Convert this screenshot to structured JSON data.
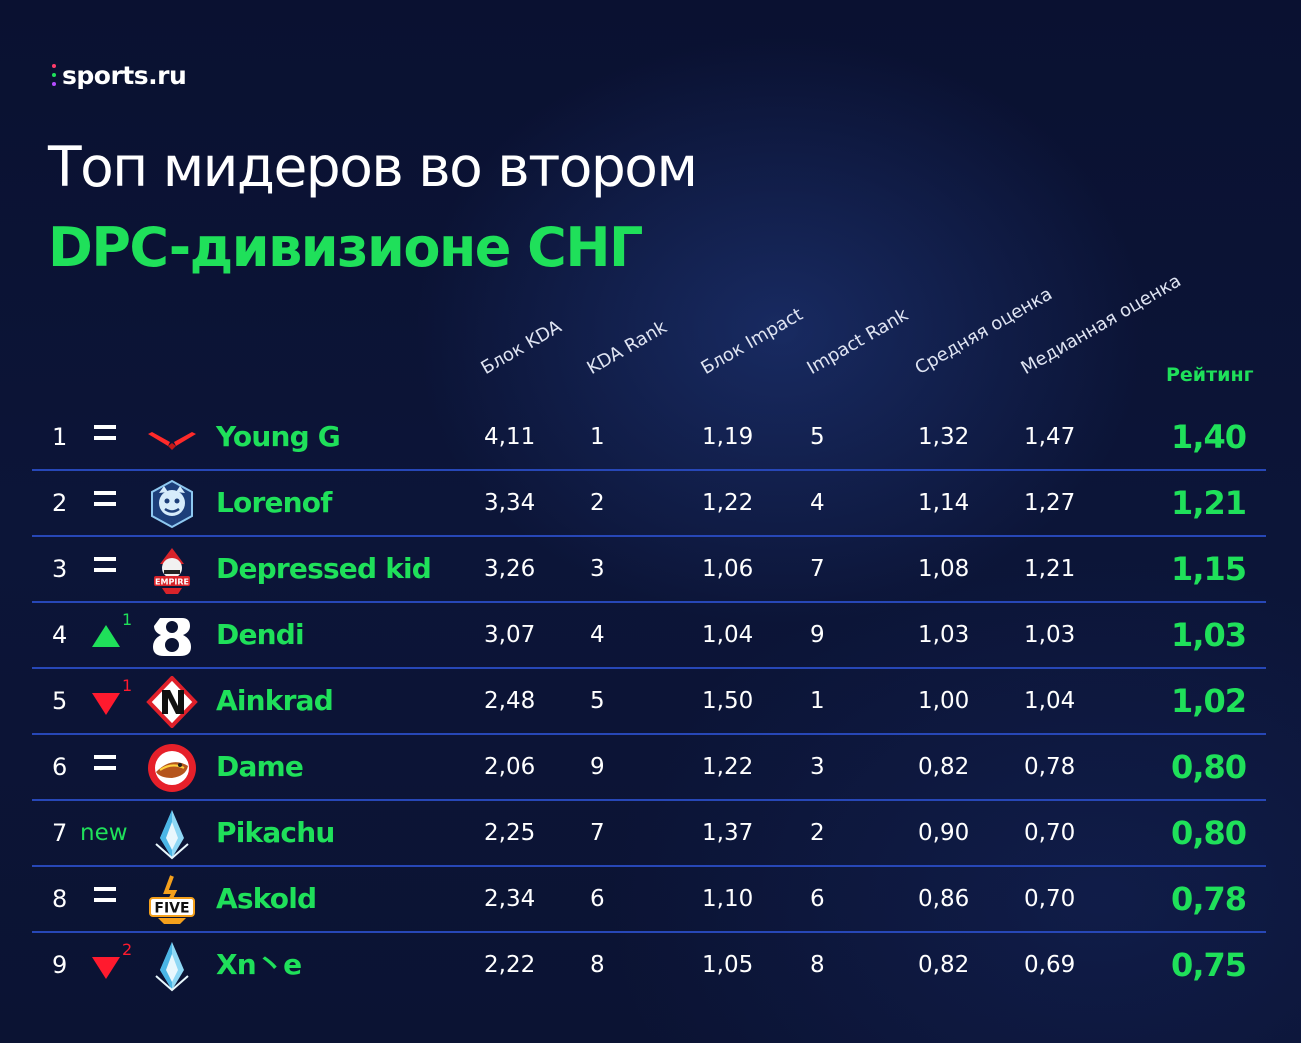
{
  "brand": {
    "logo_text": "sports.ru",
    "dot_colors": [
      "#ff3b6b",
      "#ffd23f",
      "#1fe05a",
      "#3a8dff",
      "#b44cff"
    ]
  },
  "title": {
    "line1": "Топ мидеров во втором",
    "line2": "DPC-дивизионе СНГ"
  },
  "columns": {
    "kda_block": "Блок KDA",
    "kda_rank": "KDA Rank",
    "impact_block": "Блок Impact",
    "impact_rank": "Impact Rank",
    "avg_score": "Средняя оценка",
    "median_score": "Медианная оценка",
    "rating": "Рейтинг"
  },
  "colors": {
    "accent_green": "#1fe05a",
    "down_red": "#ff1a2e",
    "separator_blue": "#2747b7",
    "background": "#0b1333"
  },
  "rows": [
    {
      "rank": "1",
      "trend": "same",
      "trend_value": "",
      "team_icon": "vp-logo-icon",
      "player": "Young G",
      "kda": "4,11",
      "kda_rank": "1",
      "impact": "1,19",
      "impact_rank": "5",
      "avg": "1,32",
      "median": "1,47",
      "rating": "1,40"
    },
    {
      "rank": "2",
      "trend": "same",
      "trend_value": "",
      "team_icon": "yeti-logo-icon",
      "player": "Lorenof",
      "kda": "3,34",
      "kda_rank": "2",
      "impact": "1,22",
      "impact_rank": "4",
      "avg": "1,14",
      "median": "1,27",
      "rating": "1,21"
    },
    {
      "rank": "3",
      "trend": "same",
      "trend_value": "",
      "team_icon": "empire-logo-icon",
      "player": "Depressed kid",
      "kda": "3,26",
      "kda_rank": "3",
      "impact": "1,06",
      "impact_rank": "7",
      "avg": "1,08",
      "median": "1,21",
      "rating": "1,15"
    },
    {
      "rank": "4",
      "trend": "up",
      "trend_value": "1",
      "team_icon": "b8-logo-icon",
      "player": "Dendi",
      "kda": "3,07",
      "kda_rank": "4",
      "impact": "1,04",
      "impact_rank": "9",
      "avg": "1,03",
      "median": "1,03",
      "rating": "1,03"
    },
    {
      "rank": "5",
      "trend": "down",
      "trend_value": "1",
      "team_icon": "nemiga-logo-icon",
      "player": "Ainkrad",
      "kda": "2,48",
      "kda_rank": "5",
      "impact": "1,50",
      "impact_rank": "1",
      "avg": "1,00",
      "median": "1,04",
      "rating": "1,02"
    },
    {
      "rank": "6",
      "trend": "same",
      "trend_value": "",
      "team_icon": "hotdogs-logo-icon",
      "player": "Dame",
      "kda": "2,06",
      "kda_rank": "9",
      "impact": "1,22",
      "impact_rank": "3",
      "avg": "0,82",
      "median": "0,78",
      "rating": "0,80"
    },
    {
      "rank": "7",
      "trend": "new",
      "trend_value": "new",
      "team_icon": "crystal-logo-icon",
      "player": "Pikachu",
      "kda": "2,25",
      "kda_rank": "7",
      "impact": "1,37",
      "impact_rank": "2",
      "avg": "0,90",
      "median": "0,70",
      "rating": "0,80"
    },
    {
      "rank": "8",
      "trend": "same",
      "trend_value": "",
      "team_icon": "five-logo-icon",
      "player": "Askold",
      "kda": "2,34",
      "kda_rank": "6",
      "impact": "1,10",
      "impact_rank": "6",
      "avg": "0,86",
      "median": "0,70",
      "rating": "0,78"
    },
    {
      "rank": "9",
      "trend": "down",
      "trend_value": "2",
      "team_icon": "crystal-logo-icon",
      "player": "Xn丶e",
      "kda": "2,22",
      "kda_rank": "8",
      "impact": "1,05",
      "impact_rank": "8",
      "avg": "0,82",
      "median": "0,69",
      "rating": "0,75"
    }
  ]
}
